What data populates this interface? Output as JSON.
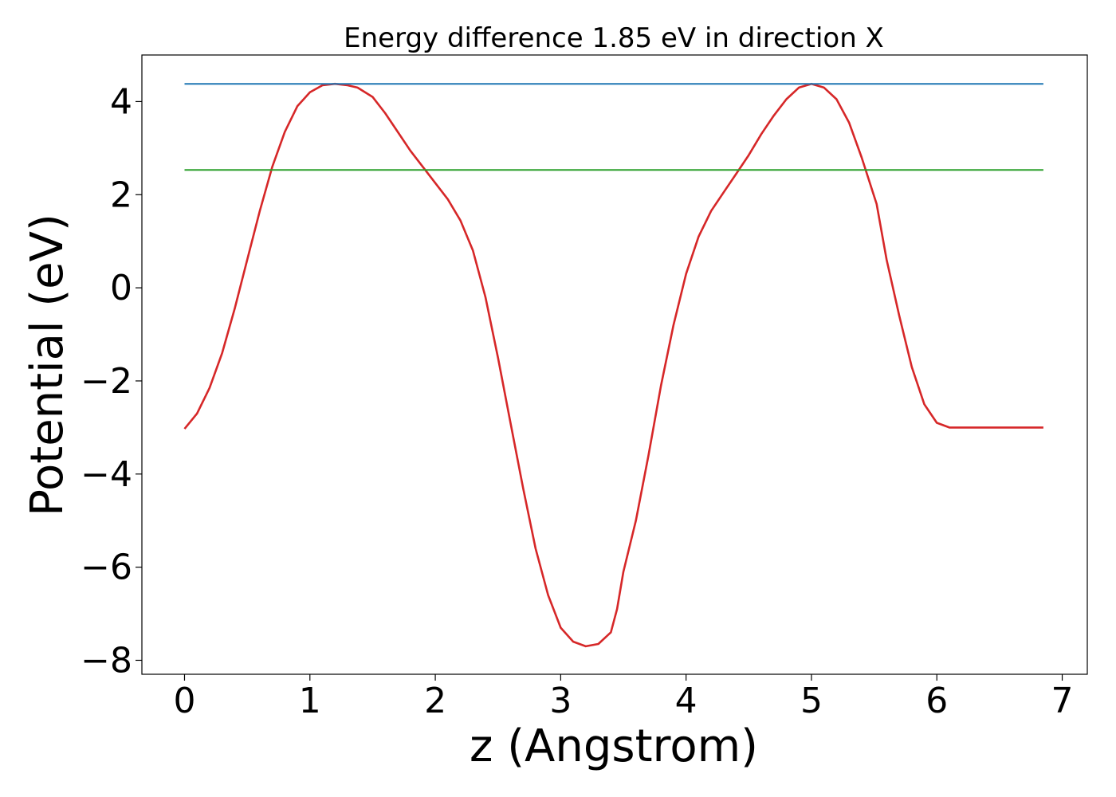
{
  "chart_data": {
    "type": "line",
    "title": "Energy difference 1.85 eV in direction X",
    "xlabel": "z (Angstrom)",
    "ylabel": "Potential (eV)",
    "xlim": [
      -0.34,
      7.2
    ],
    "ylim": [
      -8.3,
      5.0
    ],
    "xticks": [
      0,
      1,
      2,
      3,
      4,
      5,
      6,
      7
    ],
    "yticks": [
      -8,
      -6,
      -4,
      -2,
      0,
      2,
      4
    ],
    "xtick_labels": [
      "0",
      "1",
      "2",
      "3",
      "4",
      "5",
      "6",
      "7"
    ],
    "ytick_labels": [
      "−8",
      "−6",
      "−4",
      "−2",
      "0",
      "2",
      "4"
    ],
    "grid": false,
    "legend": "none",
    "series": [
      {
        "color": "#d62728",
        "x": [
          0.0,
          0.1,
          0.2,
          0.3,
          0.4,
          0.5,
          0.6,
          0.7,
          0.8,
          0.9,
          1.0,
          1.1,
          1.2,
          1.3,
          1.38,
          1.5,
          1.6,
          1.7,
          1.8,
          1.9,
          2.0,
          2.1,
          2.2,
          2.3,
          2.4,
          2.5,
          2.6,
          2.7,
          2.8,
          2.9,
          3.0,
          3.1,
          3.2,
          3.3,
          3.4,
          3.45,
          3.5,
          3.6,
          3.7,
          3.8,
          3.9,
          4.0,
          4.1,
          4.2,
          4.3,
          4.4,
          4.5,
          4.6,
          4.7,
          4.8,
          4.9,
          5.0,
          5.1,
          5.2,
          5.3,
          5.4,
          5.52,
          5.6,
          5.7,
          5.8,
          5.9,
          6.0,
          6.1,
          6.2,
          6.3,
          6.4,
          6.5,
          6.6,
          6.7,
          6.8,
          6.85
        ],
        "y": [
          -3.03,
          -2.7,
          -2.15,
          -1.4,
          -0.45,
          0.6,
          1.65,
          2.6,
          3.35,
          3.9,
          4.2,
          4.35,
          4.38,
          4.35,
          4.3,
          4.1,
          3.75,
          3.35,
          2.95,
          2.6,
          2.25,
          1.9,
          1.45,
          0.8,
          -0.2,
          -1.5,
          -2.9,
          -4.3,
          -5.6,
          -6.6,
          -7.3,
          -7.6,
          -7.7,
          -7.65,
          -7.4,
          -6.9,
          -6.1,
          -5.0,
          -3.6,
          -2.1,
          -0.8,
          0.3,
          1.1,
          1.65,
          2.05,
          2.45,
          2.85,
          3.3,
          3.7,
          4.05,
          4.3,
          4.38,
          4.3,
          4.05,
          3.55,
          2.8,
          1.8,
          0.6,
          -0.6,
          -1.7,
          -2.5,
          -2.9,
          -3.0,
          -3.0,
          -3.0,
          -3.0,
          -3.0,
          -3.0,
          -3.0,
          -3.0,
          -3.0
        ]
      },
      {
        "color": "#1f77b4",
        "x": [
          0.0,
          6.85
        ],
        "y": [
          4.38,
          4.38
        ]
      },
      {
        "color": "#2ca02c",
        "x": [
          0.0,
          6.85
        ],
        "y": [
          2.53,
          2.53
        ]
      }
    ]
  }
}
